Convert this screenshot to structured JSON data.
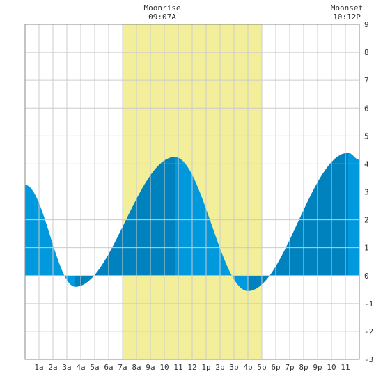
{
  "moonrise": {
    "label": "Moonrise",
    "time": "09:07A"
  },
  "moonset": {
    "label": "Moonset",
    "time": "10:12P"
  },
  "chart_data": {
    "type": "area",
    "x_tick_labels": [
      "1a",
      "2a",
      "3a",
      "4a",
      "5a",
      "6a",
      "7a",
      "8a",
      "9a",
      "10",
      "11",
      "12",
      "1p",
      "2p",
      "3p",
      "4p",
      "5p",
      "6p",
      "7p",
      "8p",
      "9p",
      "10",
      "11"
    ],
    "xlim": [
      0,
      24
    ],
    "ylim": [
      -3,
      9
    ],
    "y_ticks": [
      -3,
      -2,
      -1,
      0,
      1,
      2,
      3,
      4,
      5,
      6,
      7,
      8,
      9
    ],
    "grid": true,
    "daylight_hours": [
      7,
      17
    ],
    "extrema": [
      {
        "hour": 0,
        "value": 3.25
      },
      {
        "hour": 3.6,
        "value": -0.4
      },
      {
        "hour": 10.75,
        "value": 4.25
      },
      {
        "hour": 16.0,
        "value": -0.55
      },
      {
        "hour": 23.2,
        "value": 4.4
      },
      {
        "hour": 24,
        "value": 4.15
      }
    ],
    "colors": {
      "daylight": "#f2ee9a",
      "rising": "#0082bf",
      "falling": "#0099de",
      "grid": "#cccccc",
      "frame": "#888888"
    }
  }
}
